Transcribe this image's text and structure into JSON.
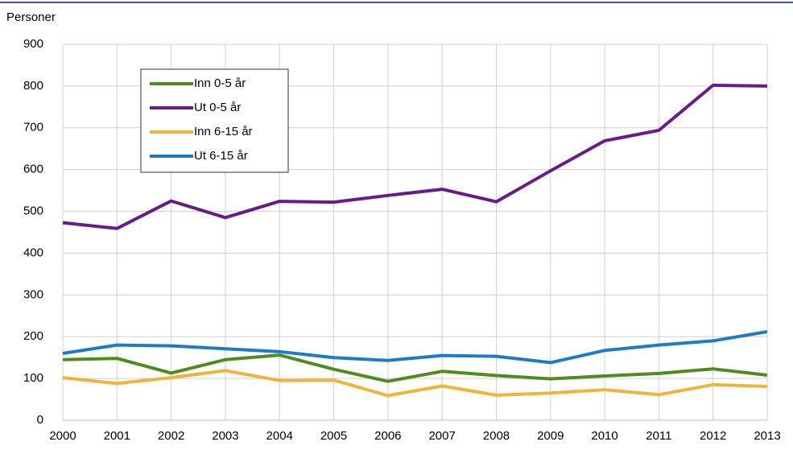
{
  "chart_data": {
    "type": "line",
    "y_label": "Personer",
    "x": [
      2000,
      2001,
      2002,
      2003,
      2004,
      2005,
      2006,
      2007,
      2008,
      2009,
      2010,
      2011,
      2012,
      2013
    ],
    "xlim": [
      2000,
      2013
    ],
    "xticks": [
      2000,
      2001,
      2002,
      2003,
      2004,
      2005,
      2006,
      2007,
      2008,
      2009,
      2010,
      2011,
      2012,
      2013
    ],
    "ylim": [
      0,
      900
    ],
    "yticks": [
      0,
      100,
      200,
      300,
      400,
      500,
      600,
      700,
      800,
      900
    ],
    "grid": true,
    "legend": "upper left",
    "series": [
      {
        "name": "Inn 0-5 år",
        "color": "#4e8c1c",
        "values": [
          145,
          148,
          113,
          145,
          156,
          122,
          93,
          117,
          107,
          99,
          106,
          112,
          123,
          108
        ]
      },
      {
        "name": "Ut 0-5 år",
        "color": "#6a1a8a",
        "values": [
          473,
          459,
          525,
          485,
          524,
          522,
          538,
          553,
          523,
          597,
          669,
          694,
          802,
          800
        ]
      },
      {
        "name": "Inn 6-15 år",
        "color": "#f0b43c",
        "values": [
          102,
          88,
          102,
          119,
          95,
          96,
          59,
          82,
          60,
          65,
          73,
          61,
          85,
          81
        ]
      },
      {
        "name": "Ut 6-15 år",
        "color": "#1f7ac8",
        "values": [
          160,
          180,
          178,
          171,
          164,
          150,
          143,
          155,
          153,
          138,
          167,
          180,
          190,
          212
        ]
      }
    ]
  }
}
